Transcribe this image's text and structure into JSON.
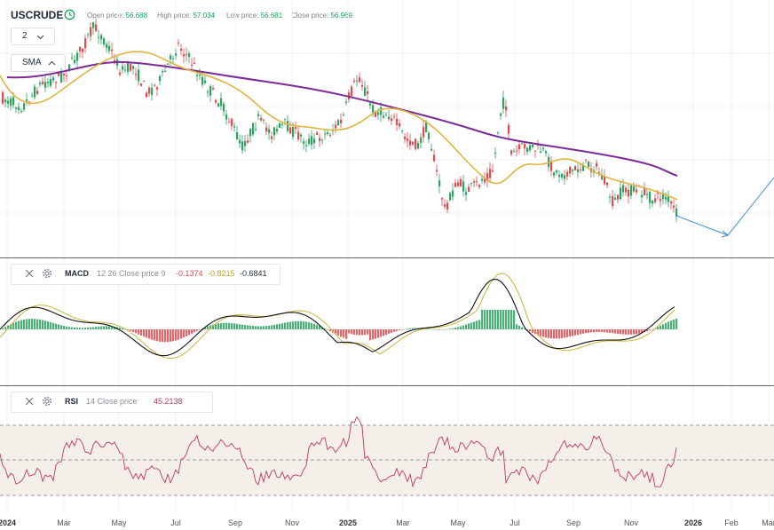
{
  "header": {
    "symbol": "USCRUDE",
    "open_label": "Open price:",
    "open_value": "56.688",
    "high_label": "High price:",
    "high_value": "57.034",
    "low_label": "Low price:",
    "low_value": "56.681",
    "close_label": "Close price:",
    "close_value": "56.969",
    "interval": "2",
    "indicator_chip": "SMA"
  },
  "macd": {
    "name": "MACD",
    "params": "12 26 Close price 9",
    "v1": "-0.1374",
    "v2": "-0.8215",
    "v3": "-0.6841"
  },
  "rsi": {
    "name": "RSI",
    "params": "14 Close price",
    "value": "45.2138"
  },
  "time_axis": {
    "ticks": [
      {
        "label": "2024",
        "year": true
      },
      {
        "label": "Mar",
        "year": false
      },
      {
        "label": "May",
        "year": false
      },
      {
        "label": "Jul",
        "year": false
      },
      {
        "label": "Sep",
        "year": false
      },
      {
        "label": "Nov",
        "year": false
      },
      {
        "label": "2025",
        "year": true
      },
      {
        "label": "Mar",
        "year": false
      },
      {
        "label": "May",
        "year": false
      },
      {
        "label": "Jul",
        "year": false
      },
      {
        "label": "Sep",
        "year": false
      },
      {
        "label": "Nov",
        "year": false
      },
      {
        "label": "2026",
        "year": true
      },
      {
        "label": "Feb",
        "year": false
      },
      {
        "label": "Mar",
        "year": false
      }
    ]
  },
  "colors": {
    "up": "#2ca25f",
    "down": "#e5484d",
    "sma_fast": "#e0b43c",
    "sma_slow": "#7b2a96",
    "forecast": "#3b8fd6",
    "macd_line": "#111111",
    "signal_line": "#c8b43a",
    "rsi_line": "#c0395a",
    "rsi_band": "#f5efe9"
  },
  "icons": [
    "clock-icon",
    "chevron-down-icon",
    "chevron-up-icon",
    "close-icon",
    "gear-icon"
  ]
}
